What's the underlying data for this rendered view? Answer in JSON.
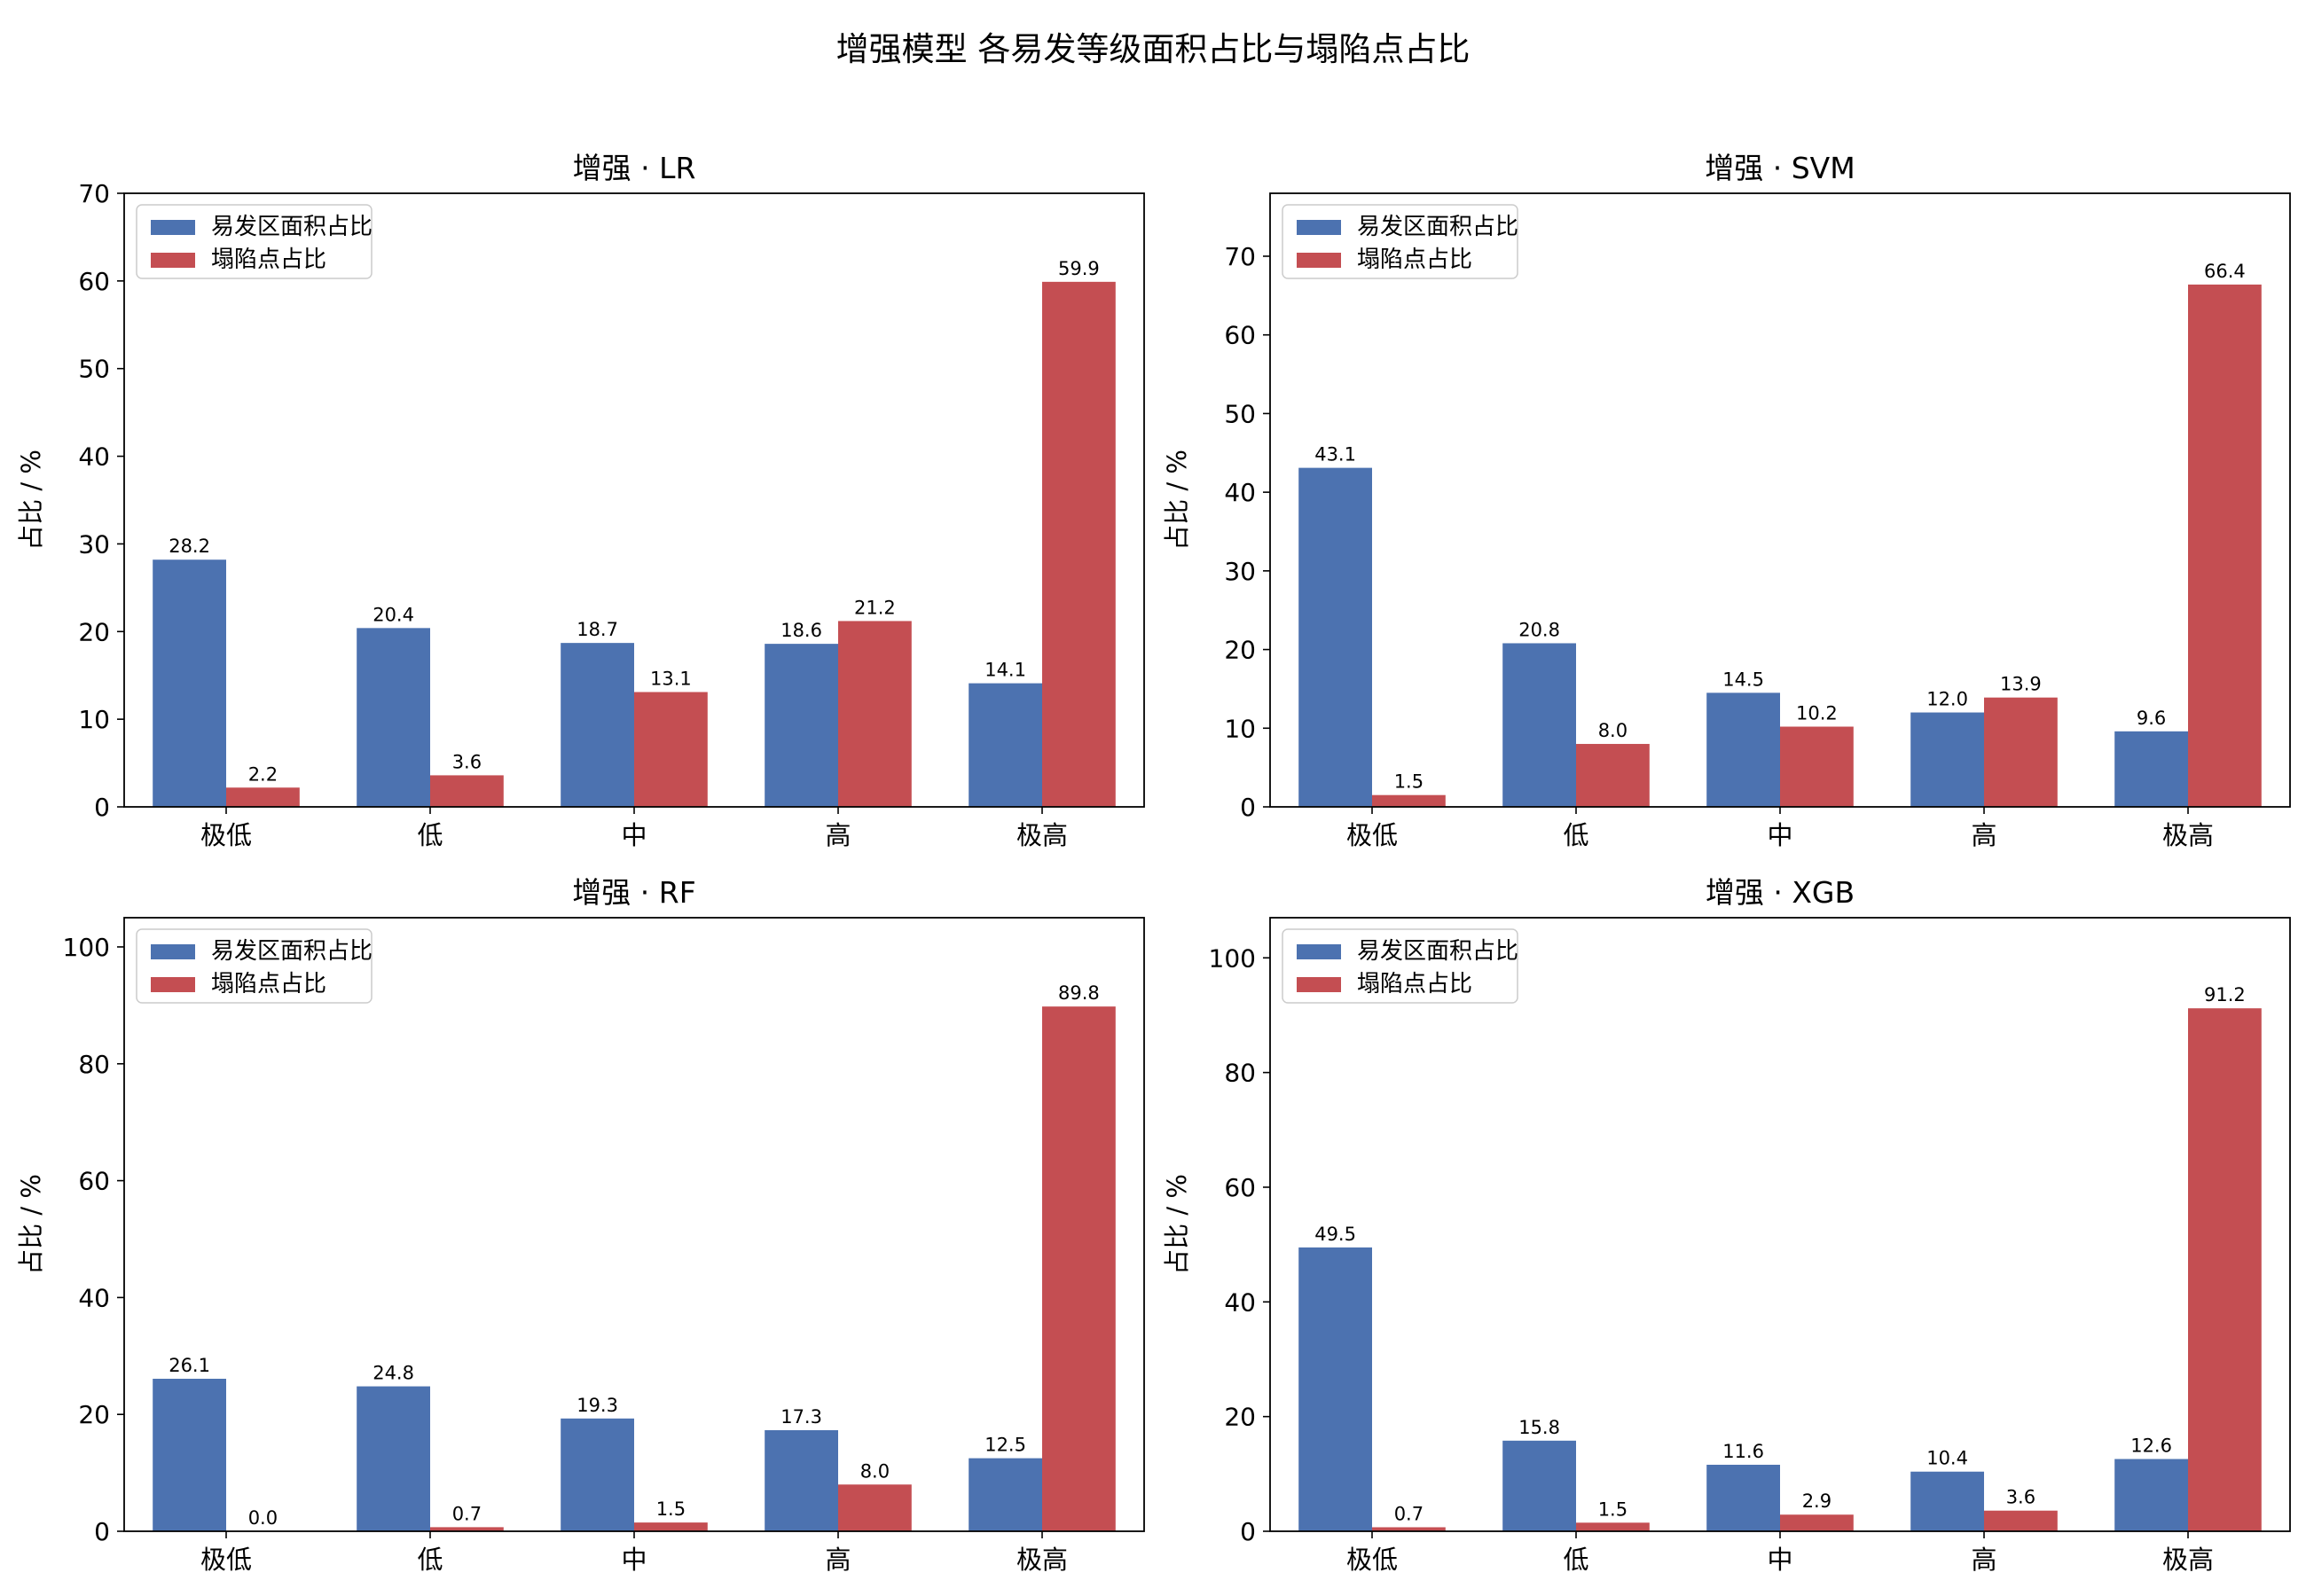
{
  "figure": {
    "title": "增强模型 各易发等级面积占比与塌陷点占比"
  },
  "colors": {
    "area": "#4c72b0",
    "points": "#c44e52"
  },
  "chart_data": [
    {
      "type": "bar",
      "title": "增强 · LR",
      "ylabel": "占比 / %",
      "xlabel": "",
      "categories": [
        "极低",
        "低",
        "中",
        "高",
        "极高"
      ],
      "ylim": [
        0,
        70
      ],
      "yticks": [
        0,
        10,
        20,
        30,
        40,
        50,
        60,
        70
      ],
      "grid": false,
      "legend": "top-left",
      "series": [
        {
          "name": "易发区面积占比",
          "values": [
            28.2,
            20.4,
            18.7,
            18.6,
            14.1
          ],
          "labels": [
            "28.2",
            "20.4",
            "18.7",
            "18.6",
            "14.1"
          ]
        },
        {
          "name": "塌陷点占比",
          "values": [
            2.2,
            3.6,
            13.1,
            21.2,
            59.9
          ],
          "labels": [
            "2.2",
            "3.6",
            "13.1",
            "21.2",
            "59.9"
          ]
        }
      ]
    },
    {
      "type": "bar",
      "title": "增强 · SVM",
      "ylabel": "占比 / %",
      "xlabel": "",
      "categories": [
        "极低",
        "低",
        "中",
        "高",
        "极高"
      ],
      "ylim": [
        0,
        78
      ],
      "yticks": [
        0,
        10,
        20,
        30,
        40,
        50,
        60,
        70
      ],
      "grid": false,
      "legend": "top-left",
      "series": [
        {
          "name": "易发区面积占比",
          "values": [
            43.1,
            20.8,
            14.5,
            12.0,
            9.6
          ],
          "labels": [
            "43.1",
            "20.8",
            "14.5",
            "12.0",
            "9.6"
          ]
        },
        {
          "name": "塌陷点占比",
          "values": [
            1.5,
            8.0,
            10.2,
            13.9,
            66.4
          ],
          "labels": [
            "1.5",
            "8.0",
            "10.2",
            "13.9",
            "66.4"
          ]
        }
      ]
    },
    {
      "type": "bar",
      "title": "增强 · RF",
      "ylabel": "占比 / %",
      "xlabel": "",
      "categories": [
        "极低",
        "低",
        "中",
        "高",
        "极高"
      ],
      "ylim": [
        0,
        105
      ],
      "yticks": [
        0,
        20,
        40,
        60,
        80,
        100
      ],
      "grid": false,
      "legend": "top-left",
      "series": [
        {
          "name": "易发区面积占比",
          "values": [
            26.1,
            24.8,
            19.3,
            17.3,
            12.5
          ],
          "labels": [
            "26.1",
            "24.8",
            "19.3",
            "17.3",
            "12.5"
          ]
        },
        {
          "name": "塌陷点占比",
          "values": [
            0.0,
            0.7,
            1.5,
            8.0,
            89.8
          ],
          "labels": [
            "0.0",
            "0.7",
            "1.5",
            "8.0",
            "89.8"
          ]
        }
      ]
    },
    {
      "type": "bar",
      "title": "增强 · XGB",
      "ylabel": "占比 / %",
      "xlabel": "",
      "categories": [
        "极低",
        "低",
        "中",
        "高",
        "极高"
      ],
      "ylim": [
        0,
        107
      ],
      "yticks": [
        0,
        20,
        40,
        60,
        80,
        100
      ],
      "grid": false,
      "legend": "top-left",
      "series": [
        {
          "name": "易发区面积占比",
          "values": [
            49.5,
            15.8,
            11.6,
            10.4,
            12.6
          ],
          "labels": [
            "49.5",
            "15.8",
            "11.6",
            "10.4",
            "12.6"
          ]
        },
        {
          "name": "塌陷点占比",
          "values": [
            0.7,
            1.5,
            2.9,
            3.6,
            91.2
          ],
          "labels": [
            "0.7",
            "1.5",
            "2.9",
            "3.6",
            "91.2"
          ]
        }
      ]
    }
  ]
}
